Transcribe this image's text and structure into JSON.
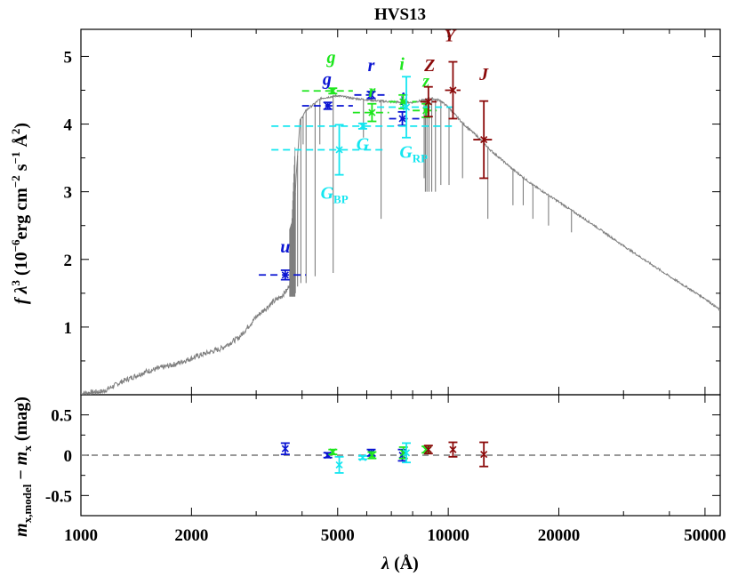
{
  "chart_data": [
    {
      "type": "scatter",
      "title": "HVS13",
      "ylabel": "f λ³ (10⁻⁶erg cm⁻² s⁻¹ Å²)",
      "xlabel": "λ (Å)",
      "xscale": "log",
      "xlim": [
        1000,
        55000
      ],
      "ylim": [
        0,
        5.4
      ],
      "yticks": [
        1,
        2,
        3,
        4,
        5
      ],
      "colors": {
        "SDSS": "#0a14d2",
        "PanSTARRS": "#1ee61e",
        "Gaia": "#14e6f0",
        "UKIDSS": "#8b0a0a",
        "model": "#7f7f7f"
      },
      "model_spectrum": {
        "description_free": true,
        "continuum": [
          [
            1000,
            0.02
          ],
          [
            1150,
            0.05
          ],
          [
            1300,
            0.2
          ],
          [
            1500,
            0.34
          ],
          [
            1800,
            0.45
          ],
          [
            2100,
            0.58
          ],
          [
            2400,
            0.68
          ],
          [
            2700,
            0.85
          ],
          [
            3000,
            1.15
          ],
          [
            3300,
            1.35
          ],
          [
            3500,
            1.45
          ],
          [
            3650,
            1.55
          ],
          [
            3750,
            1.75
          ],
          [
            3850,
            3.2
          ],
          [
            3950,
            4.05
          ],
          [
            4100,
            4.2
          ],
          [
            4500,
            4.38
          ],
          [
            5000,
            4.42
          ],
          [
            5500,
            4.38
          ],
          [
            6000,
            4.36
          ],
          [
            6500,
            4.34
          ],
          [
            7000,
            4.33
          ],
          [
            7500,
            4.32
          ],
          [
            8000,
            4.32
          ],
          [
            8500,
            4.35
          ],
          [
            9000,
            4.38
          ],
          [
            9500,
            4.35
          ],
          [
            10000,
            4.25
          ],
          [
            11000,
            4.0
          ],
          [
            12000,
            3.82
          ],
          [
            13000,
            3.62
          ],
          [
            15000,
            3.33
          ],
          [
            17000,
            3.1
          ],
          [
            20000,
            2.85
          ],
          [
            25000,
            2.5
          ],
          [
            30000,
            2.2
          ],
          [
            40000,
            1.75
          ],
          [
            50000,
            1.42
          ],
          [
            55000,
            1.25
          ]
        ],
        "absorption_lines": [
          [
            3835,
            1.5
          ],
          [
            3889,
            1.6
          ],
          [
            3970,
            1.65
          ],
          [
            4102,
            1.65
          ],
          [
            4341,
            1.75
          ],
          [
            4861,
            1.8
          ],
          [
            6563,
            2.6
          ],
          [
            4026,
            3.7
          ],
          [
            4471,
            3.7
          ],
          [
            5876,
            3.8
          ],
          [
            8598,
            3.2
          ],
          [
            8665,
            3.0
          ],
          [
            8750,
            3.0
          ],
          [
            8863,
            3.0
          ],
          [
            9015,
            3.0
          ],
          [
            9229,
            3.0
          ],
          [
            9546,
            3.1
          ],
          [
            10049,
            3.1
          ],
          [
            10938,
            3.2
          ],
          [
            12818,
            2.6
          ],
          [
            15000,
            2.8
          ],
          [
            16000,
            2.8
          ],
          [
            17000,
            2.6
          ],
          [
            18750,
            2.5
          ],
          [
            21650,
            2.4
          ]
        ]
      },
      "photometry": [
        {
          "band": "u",
          "sub": "",
          "color": "SDSS",
          "x": 3600,
          "xlo": 3050,
          "xhi": 4100,
          "y": 1.77,
          "yerr": 0.07,
          "label_pos": [
            3600,
            2.1
          ]
        },
        {
          "band": "g",
          "sub": "",
          "color": "SDSS",
          "x": 4700,
          "xlo": 4000,
          "xhi": 5500,
          "y": 4.27,
          "yerr": 0.05,
          "label_pos": [
            4680,
            4.58
          ]
        },
        {
          "band": "r",
          "sub": "",
          "color": "SDSS",
          "x": 6170,
          "xlo": 5550,
          "xhi": 6900,
          "y": 4.43,
          "yerr": 0.05,
          "label_pos": [
            6170,
            4.78
          ]
        },
        {
          "band": "i",
          "sub": "",
          "color": "SDSS",
          "x": 7500,
          "xlo": 6900,
          "xhi": 8400,
          "y": 4.08,
          "yerr": 0.1,
          "label_pos": [
            7500,
            4.28
          ]
        },
        {
          "band": "g",
          "sub": "",
          "color": "PanSTARRS",
          "x": 4850,
          "xlo": 4000,
          "xhi": 5500,
          "y": 4.49,
          "yerr": 0.04,
          "label_pos": [
            4800,
            4.9
          ]
        },
        {
          "band": "r",
          "sub": "",
          "color": "PanSTARRS",
          "x": 6200,
          "xlo": 5500,
          "xhi": 6900,
          "y": 4.17,
          "yerr": 0.13,
          "label_pos": [
            6200,
            4.4
          ]
        },
        {
          "band": "i",
          "sub": "",
          "color": "PanSTARRS",
          "x": 7530,
          "xlo": 6900,
          "xhi": 8200,
          "y": 4.33,
          "yerr": 0.1,
          "label_pos": [
            7480,
            4.8
          ]
        },
        {
          "band": "z",
          "sub": "",
          "color": "PanSTARRS",
          "x": 8700,
          "xlo": 8000,
          "xhi": 9300,
          "y": 4.2,
          "yerr": 0.1,
          "label_pos": [
            8700,
            4.55
          ]
        },
        {
          "band": "G",
          "sub": "",
          "color": "Gaia",
          "x": 5850,
          "xlo": 3300,
          "xhi": 10500,
          "y": 3.97,
          "yerr": 0.04,
          "label_pos": [
            5850,
            3.62
          ]
        },
        {
          "band": "G",
          "sub": "BP",
          "color": "Gaia",
          "x": 5050,
          "xlo": 3300,
          "xhi": 6800,
          "y": 3.62,
          "yerr": 0.37,
          "label_pos": [
            4900,
            2.9
          ]
        },
        {
          "band": "G",
          "sub": "RP",
          "color": "Gaia",
          "x": 7690,
          "xlo": 6400,
          "xhi": 10500,
          "y": 4.25,
          "yerr": 0.45,
          "label_pos": [
            8050,
            3.5
          ]
        },
        {
          "band": "Z",
          "sub": "",
          "color": "UKIDSS",
          "x": 8830,
          "xlo": 8400,
          "xhi": 9300,
          "y": 4.33,
          "yerr": 0.22,
          "label_pos": [
            8900,
            4.78
          ]
        },
        {
          "band": "Y",
          "sub": "",
          "color": "UKIDSS",
          "x": 10300,
          "xlo": 9800,
          "xhi": 10800,
          "y": 4.5,
          "yerr": 0.42,
          "label_pos": [
            10100,
            5.22
          ]
        },
        {
          "band": "J",
          "sub": "",
          "color": "UKIDSS",
          "x": 12500,
          "xlo": 11700,
          "xhi": 13400,
          "y": 3.77,
          "yerr": 0.57,
          "label_pos": [
            12500,
            4.65
          ]
        }
      ]
    },
    {
      "type": "scatter",
      "xlabel": "λ (Å)",
      "ylabel": "m x,model − m x (mag)",
      "xscale": "log",
      "xlim": [
        1000,
        55000
      ],
      "ylim": [
        -0.75,
        0.75
      ],
      "yticks": [
        0.5,
        0,
        -0.5
      ],
      "yticklabels": [
        "0.5",
        "0",
        "-0.5"
      ],
      "xticks": [
        1000,
        2000,
        5000,
        10000,
        20000,
        50000
      ],
      "xticklabels": [
        "1000",
        "2000",
        "5000",
        "10000",
        "20000",
        "50000"
      ],
      "residuals": [
        {
          "band": "u",
          "color": "SDSS",
          "x": 3600,
          "y": 0.08,
          "yerr": 0.07
        },
        {
          "band": "g",
          "color": "SDSS",
          "x": 4700,
          "y": 0.0,
          "yerr": 0.03
        },
        {
          "band": "r",
          "color": "SDSS",
          "x": 6170,
          "y": 0.03,
          "yerr": 0.04
        },
        {
          "band": "i",
          "color": "SDSS",
          "x": 7500,
          "y": 0.0,
          "yerr": 0.07
        },
        {
          "band": "g",
          "color": "PanSTARRS",
          "x": 4850,
          "y": 0.04,
          "yerr": 0.03
        },
        {
          "band": "r",
          "color": "PanSTARRS",
          "x": 6200,
          "y": 0.0,
          "yerr": 0.04
        },
        {
          "band": "i",
          "color": "PanSTARRS",
          "x": 7550,
          "y": 0.03,
          "yerr": 0.07
        },
        {
          "band": "z",
          "color": "PanSTARRS",
          "x": 8700,
          "y": 0.07,
          "yerr": 0.04
        },
        {
          "band": "G",
          "color": "Gaia",
          "x": 5850,
          "y": -0.03,
          "yerr": 0.02
        },
        {
          "band": "G_BP",
          "color": "Gaia",
          "x": 5050,
          "y": -0.12,
          "yerr": 0.1
        },
        {
          "band": "G_RP",
          "color": "Gaia",
          "x": 7690,
          "y": 0.03,
          "yerr": 0.12
        },
        {
          "band": "Z",
          "color": "UKIDSS",
          "x": 8830,
          "y": 0.07,
          "yerr": 0.05
        },
        {
          "band": "Y",
          "color": "UKIDSS",
          "x": 10300,
          "y": 0.07,
          "yerr": 0.09
        },
        {
          "band": "J",
          "color": "UKIDSS",
          "x": 12500,
          "y": 0.01,
          "yerr": 0.15
        }
      ]
    }
  ],
  "labels": {
    "title": "HVS13",
    "ylabel_top_main": "f λ",
    "ylabel_top_exp": "3",
    "ylabel_top_unit": " (10",
    "ylabel_top_e1": "−6",
    "ylabel_top_mid": "erg cm",
    "ylabel_top_e2": "−2",
    "ylabel_top_s": " s",
    "ylabel_top_e3": "−1",
    "ylabel_top_A": " Å",
    "ylabel_top_e4": "2",
    "ylabel_top_close": ")",
    "ylabel_bot_m": "m",
    "ylabel_bot_sub": "x,model",
    "ylabel_bot_minus": " − ",
    "ylabel_bot_m2": "m",
    "ylabel_bot_sub2": "x",
    "ylabel_bot_unit": " (mag)",
    "xlabel_lambda": "λ",
    "xlabel_unit": " (Å)"
  }
}
